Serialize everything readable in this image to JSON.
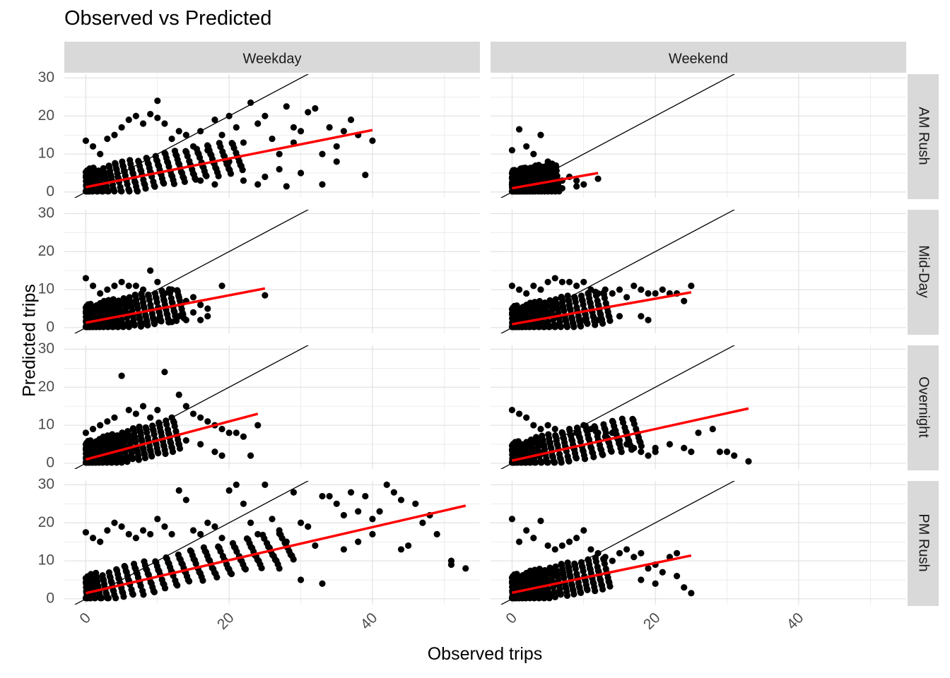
{
  "chart_data": {
    "type": "scatter",
    "title": "Observed vs Predicted",
    "xlabel": "Observed trips",
    "ylabel": "Predicted trips",
    "xlim": [
      -3,
      55
    ],
    "ylim": [
      -1.5,
      31
    ],
    "x_ticks": [
      0,
      20,
      40
    ],
    "y_ticks": [
      0,
      10,
      20,
      30
    ],
    "column_facets": [
      "Weekday",
      "Weekend"
    ],
    "row_facets": [
      "AM Rush",
      "Mid-Day",
      "Overnight",
      "PM Rush"
    ],
    "reference_line": {
      "label": "y = x",
      "color": "#000000"
    },
    "fit_line_color": "#ff0000",
    "point_color": "#000000",
    "panels": [
      {
        "col": "Weekday",
        "row": "AM Rush",
        "fit": {
          "x": [
            0,
            40
          ],
          "y": [
            1.3,
            16.3
          ]
        },
        "points": [
          [
            0,
            13.5
          ],
          [
            1,
            12
          ],
          [
            2,
            10
          ],
          [
            3,
            14
          ],
          [
            4,
            15
          ],
          [
            5,
            17
          ],
          [
            6,
            19
          ],
          [
            7,
            20
          ],
          [
            8,
            18
          ],
          [
            9,
            20.5
          ],
          [
            10,
            19.5
          ],
          [
            10,
            24
          ],
          [
            11,
            18
          ],
          [
            12,
            14
          ],
          [
            13,
            16
          ],
          [
            14,
            15
          ],
          [
            15,
            12
          ],
          [
            16,
            16
          ],
          [
            17,
            11
          ],
          [
            18,
            19
          ],
          [
            19,
            15
          ],
          [
            20,
            20
          ],
          [
            21,
            17
          ],
          [
            22,
            13
          ],
          [
            23,
            23.5
          ],
          [
            24,
            18
          ],
          [
            25,
            20
          ],
          [
            26,
            14
          ],
          [
            27,
            10
          ],
          [
            28,
            22.5
          ],
          [
            29,
            17
          ],
          [
            30,
            16
          ],
          [
            31,
            21
          ],
          [
            32,
            22
          ],
          [
            33,
            10
          ],
          [
            34,
            17
          ],
          [
            35,
            12
          ],
          [
            36,
            16
          ],
          [
            37,
            19
          ],
          [
            38,
            15
          ],
          [
            39,
            4.5
          ],
          [
            40,
            13.5
          ],
          [
            22,
            3
          ],
          [
            24,
            2
          ],
          [
            25,
            4
          ],
          [
            28,
            1.5
          ],
          [
            30,
            5
          ],
          [
            18,
            2
          ],
          [
            16,
            3
          ],
          [
            35,
            8
          ],
          [
            33,
            2
          ],
          [
            20,
            8
          ],
          [
            27,
            6
          ],
          [
            29,
            13
          ]
        ]
      },
      {
        "col": "Weekend",
        "row": "AM Rush",
        "fit": {
          "x": [
            0,
            12
          ],
          "y": [
            1,
            5
          ]
        },
        "points": [
          [
            0,
            11
          ],
          [
            1,
            16.5
          ],
          [
            2,
            12
          ],
          [
            3,
            10
          ],
          [
            4,
            15
          ],
          [
            5,
            8
          ],
          [
            6,
            5
          ],
          [
            7,
            3
          ],
          [
            8,
            4
          ],
          [
            9,
            3
          ],
          [
            10,
            2
          ],
          [
            12,
            3.5
          ],
          [
            0,
            2
          ],
          [
            1,
            4
          ],
          [
            2,
            1
          ],
          [
            3,
            6
          ],
          [
            5,
            1
          ],
          [
            7,
            1
          ],
          [
            9,
            1.5
          ]
        ]
      },
      {
        "col": "Weekday",
        "row": "Mid-Day",
        "fit": {
          "x": [
            0,
            25
          ],
          "y": [
            1.3,
            10.3
          ]
        },
        "points": [
          [
            0,
            13
          ],
          [
            1,
            11
          ],
          [
            2,
            9
          ],
          [
            3,
            10
          ],
          [
            4,
            11
          ],
          [
            5,
            12
          ],
          [
            6,
            11
          ],
          [
            7,
            11
          ],
          [
            8,
            10
          ],
          [
            9,
            15
          ],
          [
            10,
            12
          ],
          [
            11,
            9
          ],
          [
            12,
            10
          ],
          [
            13,
            8
          ],
          [
            14,
            7
          ],
          [
            15,
            8
          ],
          [
            16,
            6
          ],
          [
            17,
            5
          ],
          [
            19,
            11
          ],
          [
            25,
            8.5
          ],
          [
            10,
            2
          ],
          [
            13,
            3
          ],
          [
            15,
            4
          ],
          [
            17,
            3
          ],
          [
            8,
            1
          ],
          [
            12,
            1.5
          ],
          [
            14,
            2
          ],
          [
            16,
            2
          ]
        ]
      },
      {
        "col": "Weekend",
        "row": "Mid-Day",
        "fit": {
          "x": [
            0,
            25
          ],
          "y": [
            0.9,
            9.3
          ]
        },
        "points": [
          [
            0,
            11
          ],
          [
            1,
            10
          ],
          [
            2,
            9
          ],
          [
            3,
            11
          ],
          [
            4,
            10
          ],
          [
            5,
            12
          ],
          [
            6,
            13
          ],
          [
            7,
            12
          ],
          [
            8,
            12
          ],
          [
            9,
            11
          ],
          [
            10,
            12
          ],
          [
            11,
            10
          ],
          [
            12,
            9
          ],
          [
            13,
            10
          ],
          [
            14,
            9
          ],
          [
            15,
            10
          ],
          [
            16,
            8
          ],
          [
            17,
            11
          ],
          [
            18,
            10
          ],
          [
            19,
            9
          ],
          [
            20,
            9
          ],
          [
            21,
            10
          ],
          [
            22,
            9
          ],
          [
            23,
            9
          ],
          [
            24,
            7
          ],
          [
            25,
            11
          ],
          [
            10,
            2
          ],
          [
            12,
            2
          ],
          [
            15,
            3
          ],
          [
            18,
            3
          ],
          [
            19,
            2
          ]
        ]
      },
      {
        "col": "Weekday",
        "row": "Overnight",
        "fit": {
          "x": [
            0,
            24
          ],
          "y": [
            1,
            13
          ]
        },
        "points": [
          [
            0,
            8
          ],
          [
            1,
            9
          ],
          [
            2,
            10
          ],
          [
            3,
            11
          ],
          [
            4,
            12
          ],
          [
            5,
            23
          ],
          [
            6,
            14
          ],
          [
            7,
            13
          ],
          [
            8,
            15
          ],
          [
            9,
            12
          ],
          [
            10,
            14
          ],
          [
            11,
            24
          ],
          [
            12,
            12
          ],
          [
            13,
            18
          ],
          [
            14,
            15
          ],
          [
            15,
            13
          ],
          [
            16,
            12
          ],
          [
            17,
            11
          ],
          [
            18,
            10
          ],
          [
            19,
            9
          ],
          [
            20,
            8
          ],
          [
            21,
            8
          ],
          [
            22,
            7
          ],
          [
            23,
            2
          ],
          [
            24,
            10
          ],
          [
            18,
            3
          ],
          [
            19,
            2
          ],
          [
            16,
            5
          ],
          [
            14,
            6
          ]
        ]
      },
      {
        "col": "Weekend",
        "row": "Overnight",
        "fit": {
          "x": [
            0,
            33
          ],
          "y": [
            0.7,
            14.4
          ]
        },
        "points": [
          [
            0,
            14
          ],
          [
            1,
            13
          ],
          [
            2,
            12
          ],
          [
            3,
            10
          ],
          [
            4,
            9
          ],
          [
            5,
            10
          ],
          [
            6,
            9
          ],
          [
            7,
            8
          ],
          [
            8,
            9
          ],
          [
            9,
            8
          ],
          [
            10,
            10
          ],
          [
            11,
            9
          ],
          [
            12,
            8
          ],
          [
            13,
            7
          ],
          [
            14,
            8
          ],
          [
            15,
            6
          ],
          [
            16,
            5
          ],
          [
            17,
            4
          ],
          [
            18,
            3
          ],
          [
            19,
            2
          ],
          [
            20,
            4
          ],
          [
            22,
            5
          ],
          [
            25,
            3
          ],
          [
            26,
            8
          ],
          [
            28,
            9
          ],
          [
            30,
            3
          ],
          [
            31,
            2
          ],
          [
            33,
            0.5
          ],
          [
            24,
            4
          ],
          [
            29,
            3
          ],
          [
            20,
            3
          ]
        ]
      },
      {
        "col": "Weekday",
        "row": "PM Rush",
        "fit": {
          "x": [
            0,
            53
          ],
          "y": [
            1.5,
            24.5
          ]
        },
        "points": [
          [
            0,
            17.5
          ],
          [
            1,
            16
          ],
          [
            2,
            15
          ],
          [
            3,
            18
          ],
          [
            4,
            20
          ],
          [
            5,
            19
          ],
          [
            6,
            17
          ],
          [
            7,
            16
          ],
          [
            8,
            18
          ],
          [
            9,
            17
          ],
          [
            10,
            21
          ],
          [
            11,
            19
          ],
          [
            12,
            17
          ],
          [
            13,
            28.5
          ],
          [
            14,
            26
          ],
          [
            15,
            18
          ],
          [
            16,
            17
          ],
          [
            17,
            20
          ],
          [
            18,
            19
          ],
          [
            19,
            16
          ],
          [
            20,
            28.5
          ],
          [
            21,
            30
          ],
          [
            22,
            25
          ],
          [
            23,
            20
          ],
          [
            24,
            17
          ],
          [
            25,
            30
          ],
          [
            26,
            21
          ],
          [
            27,
            18
          ],
          [
            28,
            15
          ],
          [
            29,
            28
          ],
          [
            30,
            20
          ],
          [
            31,
            19
          ],
          [
            32,
            14
          ],
          [
            33,
            27
          ],
          [
            34,
            27
          ],
          [
            35,
            25
          ],
          [
            36,
            22
          ],
          [
            37,
            28
          ],
          [
            38,
            23
          ],
          [
            39,
            27
          ],
          [
            40,
            21
          ],
          [
            41,
            23
          ],
          [
            42,
            30
          ],
          [
            43,
            28
          ],
          [
            44,
            26
          ],
          [
            45,
            14
          ],
          [
            46,
            25
          ],
          [
            47,
            20
          ],
          [
            48,
            22
          ],
          [
            49,
            17
          ],
          [
            51,
            10
          ],
          [
            51,
            9
          ],
          [
            53,
            8
          ],
          [
            33,
            4
          ],
          [
            30,
            5
          ],
          [
            27,
            8
          ],
          [
            36,
            13
          ],
          [
            38,
            15
          ],
          [
            40,
            17
          ],
          [
            44,
            13
          ]
        ]
      },
      {
        "col": "Weekend",
        "row": "PM Rush",
        "fit": {
          "x": [
            0,
            25
          ],
          "y": [
            1.6,
            11.4
          ]
        },
        "points": [
          [
            0,
            21
          ],
          [
            1,
            15
          ],
          [
            2,
            18
          ],
          [
            3,
            16
          ],
          [
            4,
            20.5
          ],
          [
            5,
            14
          ],
          [
            6,
            13
          ],
          [
            7,
            14
          ],
          [
            8,
            15
          ],
          [
            9,
            16
          ],
          [
            10,
            18
          ],
          [
            11,
            13
          ],
          [
            12,
            12
          ],
          [
            13,
            11
          ],
          [
            14,
            10
          ],
          [
            15,
            12
          ],
          [
            16,
            13
          ],
          [
            17,
            11
          ],
          [
            18,
            12
          ],
          [
            19,
            8
          ],
          [
            20,
            9
          ],
          [
            21,
            7
          ],
          [
            22,
            11
          ],
          [
            23,
            12
          ],
          [
            24,
            3
          ],
          [
            25,
            1.5
          ],
          [
            20,
            4
          ],
          [
            18,
            5
          ],
          [
            23,
            6
          ]
        ]
      }
    ]
  }
}
